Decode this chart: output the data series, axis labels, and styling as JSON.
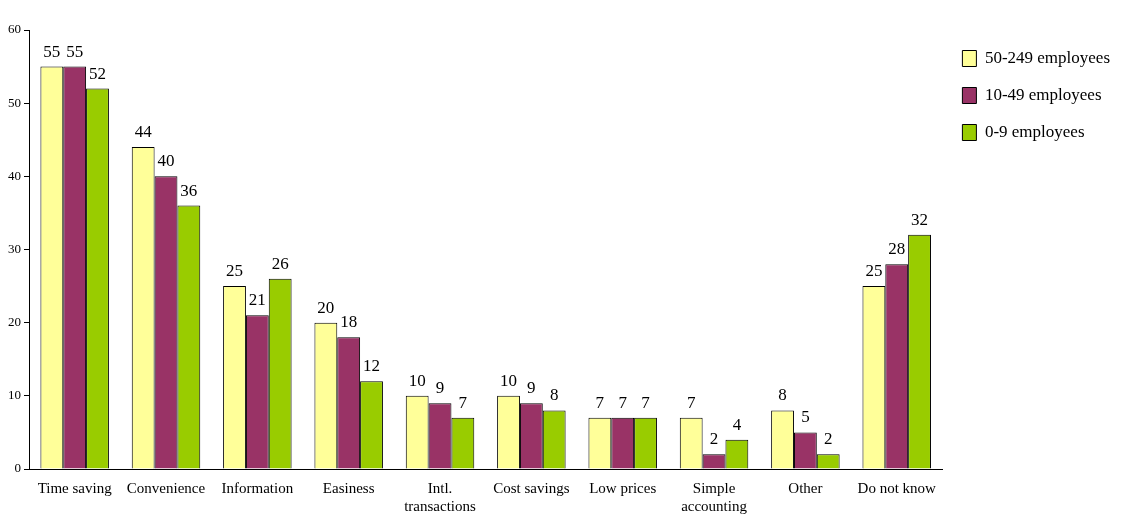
{
  "chart_data": {
    "type": "bar",
    "categories": [
      "Time saving",
      "Convenience",
      "Information",
      "Easiness",
      "Intl. transactions",
      "Cost savings",
      "Low prices",
      "Simple accounting",
      "Other",
      "Do not know"
    ],
    "series": [
      {
        "name": "50-249 employees",
        "color": "#ffff99",
        "values": [
          55,
          44,
          25,
          20,
          10,
          10,
          7,
          7,
          8,
          25
        ]
      },
      {
        "name": "10-49 employees",
        "color": "#993366",
        "values": [
          55,
          40,
          21,
          18,
          9,
          9,
          7,
          2,
          5,
          28
        ]
      },
      {
        "name": "0-9 employees",
        "color": "#99cc00",
        "values": [
          52,
          36,
          26,
          12,
          7,
          8,
          7,
          4,
          2,
          32
        ]
      }
    ],
    "ylim": [
      0,
      60
    ],
    "yticks": [
      0,
      10,
      20,
      30,
      40,
      50,
      60
    ],
    "grid": false,
    "legend": "top right",
    "data_labels": true
  }
}
